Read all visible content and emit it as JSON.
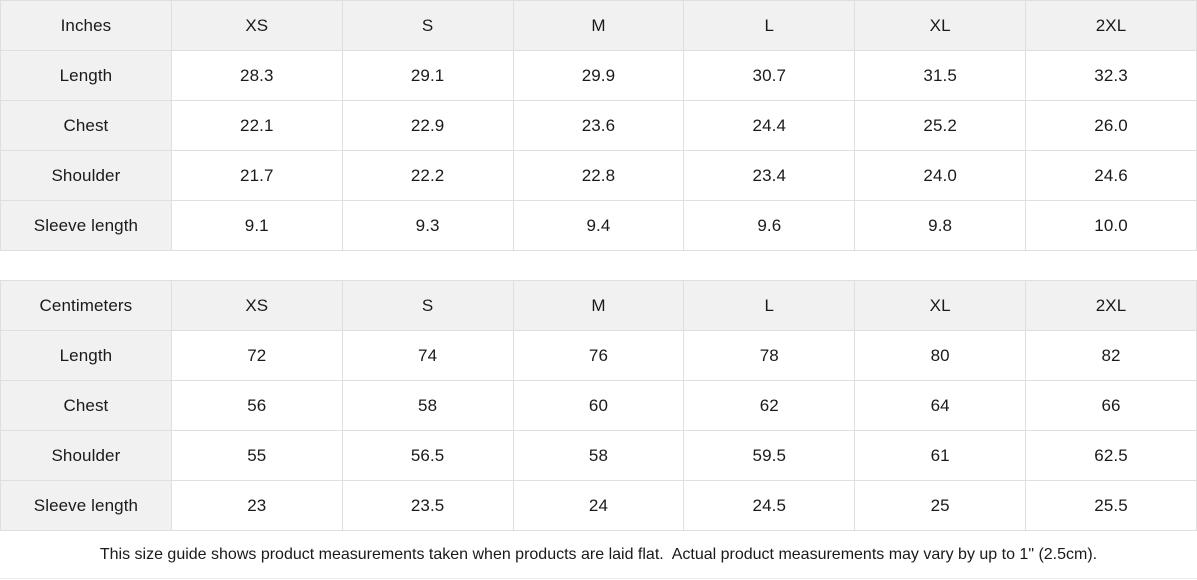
{
  "colors": {
    "header_bg": "#f1f1f1",
    "cell_bg": "#ffffff",
    "border": "#dfdfdf",
    "text": "#1a1a1a"
  },
  "tables": [
    {
      "unit_label": "Inches",
      "sizes": [
        "XS",
        "S",
        "M",
        "L",
        "XL",
        "2XL"
      ],
      "rows": [
        {
          "label": "Length",
          "values": [
            "28.3",
            "29.1",
            "29.9",
            "30.7",
            "31.5",
            "32.3"
          ]
        },
        {
          "label": "Chest",
          "values": [
            "22.1",
            "22.9",
            "23.6",
            "24.4",
            "25.2",
            "26.0"
          ]
        },
        {
          "label": "Shoulder",
          "values": [
            "21.7",
            "22.2",
            "22.8",
            "23.4",
            "24.0",
            "24.6"
          ]
        },
        {
          "label": "Sleeve length",
          "values": [
            "9.1",
            "9.3",
            "9.4",
            "9.6",
            "9.8",
            "10.0"
          ]
        }
      ]
    },
    {
      "unit_label": "Centimeters",
      "sizes": [
        "XS",
        "S",
        "M",
        "L",
        "XL",
        "2XL"
      ],
      "rows": [
        {
          "label": "Length",
          "values": [
            "72",
            "74",
            "76",
            "78",
            "80",
            "82"
          ]
        },
        {
          "label": "Chest",
          "values": [
            "56",
            "58",
            "60",
            "62",
            "64",
            "66"
          ]
        },
        {
          "label": "Shoulder",
          "values": [
            "55",
            "56.5",
            "58",
            "59.5",
            "61",
            "62.5"
          ]
        },
        {
          "label": "Sleeve length",
          "values": [
            "23",
            "23.5",
            "24",
            "24.5",
            "25",
            "25.5"
          ]
        }
      ]
    }
  ],
  "footer": {
    "note": "This size guide shows product measurements taken when products are laid flat.  Actual product measurements may vary by up to 1\" (2.5cm)."
  }
}
